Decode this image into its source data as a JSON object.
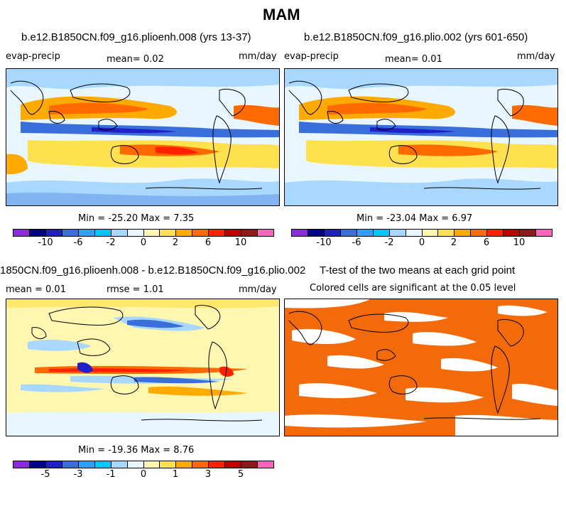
{
  "season": "MAM",
  "panels": {
    "p1": {
      "case": "b.e12.B1850CN.f09_g16.plioenh.008 (yrs 13-37)",
      "var": "evap-precip",
      "mean": "mean=    0.02",
      "units": "mm/day",
      "minmax": "Min = -25.20 Max =   7.35"
    },
    "p2": {
      "case": "b.e12.B1850CN.f09_g16.plio.002 (yrs 601-650)",
      "var": "evap-precip",
      "mean": "mean=    0.01",
      "units": "mm/day",
      "minmax": "Min = -23.04 Max =   6.97"
    },
    "p3": {
      "case": "1850CN.f09_g16.plioenh.008 - b.e12.B1850CN.f09_g16.plio.002",
      "mean": "mean =    0.01",
      "rmse": "rmse =    1.01",
      "units": "mm/day",
      "minmax": "Min = -19.36 Max =   8.76"
    },
    "p4": {
      "case": "T-test of the two means at each grid point",
      "note": "Colored cells are significant at the 0.05 level"
    }
  },
  "colorbar": {
    "colors": [
      "#8a2be2",
      "#00008b",
      "#2020c8",
      "#3a6fdb",
      "#2fa0ff",
      "#00c8ff",
      "#a8d8ff",
      "#e8f6ff",
      "#fff7b0",
      "#ffe14d",
      "#ffaa00",
      "#ff6a00",
      "#ff2000",
      "#c00000",
      "#8b1a1a",
      "#ff66bb"
    ],
    "ticks_full": [
      "-10",
      "-6",
      "-2",
      "0",
      "2",
      "6",
      "10"
    ],
    "ticks_diff": [
      "-5",
      "-3",
      "-1",
      "0",
      "1",
      "3",
      "5"
    ]
  },
  "map_colors": {
    "ocean_bg": "#e8f6ff",
    "light_blue": "#a8d8ff",
    "blue": "#3a6fdb",
    "dark_blue": "#2020c8",
    "yellow": "#ffe14d",
    "pale_yellow": "#fff7b0",
    "orange": "#ffaa00",
    "red_orange": "#ff6a00",
    "red": "#ff2000",
    "significance": "#f26a0a",
    "coast": "#000000"
  }
}
